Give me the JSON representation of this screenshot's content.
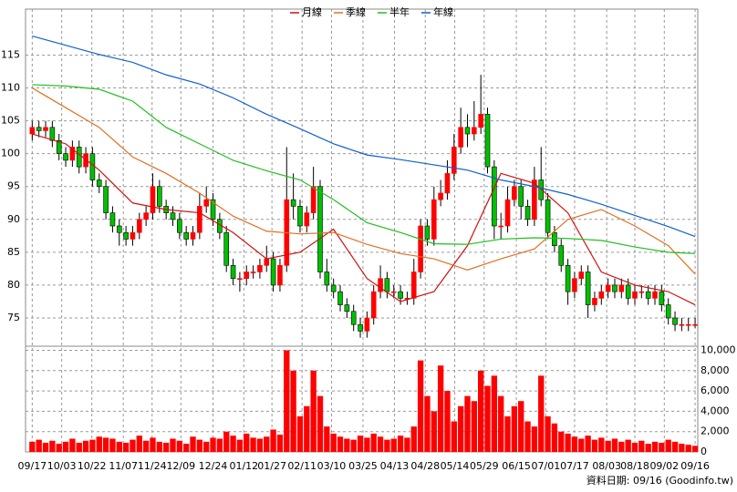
{
  "chart_data": {
    "type": "candlestick",
    "footer": "資料日期: 09/16  (Goodinfo.tw)",
    "xlim": [
      -1,
      99.4
    ],
    "xticks": [
      {
        "value": 0,
        "label": "09/17"
      },
      {
        "value": 4.4,
        "label": "10/03"
      },
      {
        "value": 8.9,
        "label": "10/22"
      },
      {
        "value": 13.6,
        "label": "11/07"
      },
      {
        "value": 17.9,
        "label": "11/24"
      },
      {
        "value": 22.2,
        "label": "12/09"
      },
      {
        "value": 27,
        "label": "12/24"
      },
      {
        "value": 31.6,
        "label": "01/12"
      },
      {
        "value": 35.8,
        "label": "01/27"
      },
      {
        "value": 40.3,
        "label": "02/11"
      },
      {
        "value": 44.7,
        "label": "03/10"
      },
      {
        "value": 49.4,
        "label": "03/25"
      },
      {
        "value": 54.1,
        "label": "04/13"
      },
      {
        "value": 58.7,
        "label": "04/28"
      },
      {
        "value": 63.1,
        "label": "05/14"
      },
      {
        "value": 67.5,
        "label": "05/29"
      },
      {
        "value": 72.3,
        "label": "06/15"
      },
      {
        "value": 76.7,
        "label": "07/01"
      },
      {
        "value": 81,
        "label": "07/17"
      },
      {
        "value": 85.8,
        "label": "08/03"
      },
      {
        "value": 90,
        "label": "08/18"
      },
      {
        "value": 94.4,
        "label": "09/02"
      },
      {
        "value": 99,
        "label": "09/16"
      }
    ],
    "ylim": [
      70.7,
      122
    ],
    "yticks": [
      75,
      80,
      85,
      90,
      95,
      100,
      105,
      110,
      115
    ],
    "y2lim": [
      0,
      10400
    ],
    "y2ticks": [
      0,
      {
        "value": 2000,
        "label": "2,000"
      },
      {
        "value": 4000,
        "label": "4,000"
      },
      {
        "value": 6000,
        "label": "6,000"
      },
      {
        "value": 8000,
        "label": "8,000"
      },
      {
        "value": 10000,
        "label": "10,000"
      }
    ],
    "grid": true,
    "up_color": "#ff0000",
    "down_color": "#00c000",
    "volume_color": "#ff0000",
    "open": [
      103,
      104,
      103.5,
      104,
      102,
      100,
      99,
      101,
      98,
      100,
      96,
      95,
      91,
      89,
      88,
      87,
      88,
      90,
      91,
      95,
      92,
      91,
      90,
      88,
      87,
      88,
      92,
      93,
      90,
      88,
      83,
      81,
      81,
      82,
      82,
      83,
      84,
      80,
      83,
      93,
      92,
      89,
      91,
      95,
      82,
      80,
      79,
      77,
      76,
      74,
      73,
      75,
      79,
      81,
      79,
      79,
      78,
      78,
      82,
      89,
      87,
      93,
      94,
      97,
      101,
      104,
      103,
      104,
      106,
      98,
      89,
      89,
      93,
      95,
      92,
      90,
      96,
      93,
      88,
      86,
      83,
      79,
      81,
      82,
      77,
      78,
      79,
      80,
      79,
      80,
      78,
      79,
      79,
      78,
      79,
      77,
      75,
      74,
      74,
      74
    ],
    "high": [
      105,
      105,
      105,
      105,
      103,
      101,
      102,
      102,
      101,
      101,
      97,
      96,
      92,
      90,
      89,
      89,
      91,
      92,
      97,
      96,
      93,
      92,
      91,
      89,
      89,
      94,
      95,
      94,
      91,
      89,
      84,
      82,
      83,
      83,
      84,
      86,
      85,
      84,
      101,
      97,
      93,
      92,
      98,
      96,
      84,
      81,
      80,
      78,
      77,
      75,
      76,
      80,
      83,
      82,
      80,
      80,
      79,
      84,
      90,
      90,
      95,
      96,
      99,
      103,
      107,
      106,
      108,
      112,
      107,
      99,
      91,
      95,
      96,
      96,
      93,
      98,
      101,
      94,
      89,
      87,
      84,
      82,
      83,
      83,
      79,
      80,
      81,
      81,
      81,
      81,
      80,
      80,
      80,
      80,
      80,
      78,
      76,
      75,
      75,
      75
    ],
    "low": [
      102,
      102.5,
      102.5,
      101,
      99,
      98,
      98,
      97,
      97,
      95,
      94,
      90,
      88,
      86,
      86,
      86,
      87,
      89,
      90,
      91,
      90,
      89,
      87,
      86,
      86,
      87,
      91,
      89,
      87,
      82,
      80,
      79,
      80,
      81,
      81,
      82,
      79,
      79,
      82,
      90,
      88,
      88,
      90,
      81,
      79,
      78,
      76,
      75,
      73,
      72,
      72,
      74,
      78,
      78,
      78,
      77,
      77,
      77,
      81,
      86,
      86,
      92,
      93,
      96,
      100,
      101,
      102,
      103,
      97,
      87,
      87,
      88,
      92,
      90,
      89,
      89,
      92,
      87,
      85,
      82,
      77,
      78,
      80,
      75,
      76,
      77,
      78,
      78,
      78,
      77,
      77,
      78,
      77,
      77,
      76,
      74,
      73,
      73,
      73,
      73.5
    ],
    "close": [
      104,
      103.5,
      104,
      102,
      100,
      99,
      101,
      98,
      100,
      96,
      95,
      91,
      89,
      88,
      87,
      88,
      90,
      91,
      95,
      92,
      91,
      90,
      88,
      87,
      88,
      92,
      93,
      90,
      88,
      83,
      81,
      81,
      82,
      82,
      83,
      84,
      80,
      83,
      93,
      92,
      89,
      91,
      95,
      82,
      80,
      79,
      77,
      76,
      74,
      73,
      75,
      79,
      81,
      79,
      79,
      78,
      78,
      82,
      89,
      87,
      93,
      94,
      97,
      101,
      104,
      103,
      104,
      106,
      98,
      89,
      89,
      93,
      95,
      92,
      90,
      96,
      93,
      88,
      86,
      83,
      79,
      81,
      82,
      77,
      78,
      79,
      80,
      79,
      80,
      78,
      79,
      79,
      78,
      79,
      77,
      75,
      74,
      74,
      74,
      74
    ],
    "volume": [
      1000,
      1200,
      900,
      1100,
      800,
      1000,
      1300,
      900,
      1100,
      1200,
      1500,
      1400,
      1300,
      1000,
      900,
      1200,
      1600,
      1100,
      1400,
      1000,
      900,
      1300,
      1100,
      800,
      1500,
      1200,
      1000,
      1400,
      1300,
      2000,
      1600,
      1200,
      1800,
      1400,
      1300,
      1500,
      2200,
      1700,
      10000,
      8000,
      3500,
      4500,
      8000,
      5500,
      2500,
      1800,
      1500,
      1300,
      1200,
      1600,
      1400,
      1800,
      1500,
      1200,
      1300,
      1600,
      1400,
      2500,
      9000,
      5500,
      4000,
      8500,
      6000,
      3000,
      4500,
      5500,
      5000,
      8000,
      6500,
      7500,
      5500,
      3500,
      4500,
      5000,
      3000,
      2500,
      7500,
      3500,
      2800,
      2000,
      1800,
      1500,
      1300,
      1600,
      1200,
      1400,
      1100,
      1300,
      1000,
      1200,
      900,
      1100,
      800,
      1000,
      900,
      1200,
      1000,
      800,
      700,
      600
    ],
    "ma_x": [
      0,
      5,
      10,
      15,
      20,
      25,
      30,
      35,
      40,
      45,
      50,
      55,
      60,
      65,
      70,
      75,
      80,
      85,
      90,
      95,
      99
    ],
    "series": [
      {
        "name": "月線",
        "color": "#d01010",
        "values": [
          103,
          101.5,
          97.5,
          92.5,
          91.5,
          91,
          88,
          84,
          85,
          88.5,
          81,
          77.5,
          79,
          86,
          97,
          95.5,
          91,
          82,
          80,
          79,
          77
        ]
      },
      {
        "name": "季線",
        "color": "#e07020",
        "values": [
          110,
          107,
          104,
          99.5,
          97,
          94,
          90.5,
          88.2,
          87.8,
          88,
          86.2,
          84.8,
          84,
          82.3,
          84,
          85.5,
          90,
          91.5,
          89,
          86,
          81.7
        ]
      },
      {
        "name": "半年",
        "color": "#20c020",
        "values": [
          110.5,
          110.3,
          109.8,
          108,
          104,
          101.5,
          99,
          97.4,
          96,
          93,
          89.5,
          88,
          86.3,
          86.2,
          87,
          87.2,
          87.1,
          86.8,
          85.8,
          85,
          84.8
        ]
      },
      {
        "name": "年線",
        "color": "#1060d0",
        "values": [
          117.9,
          116.5,
          115.1,
          113.9,
          112,
          110.6,
          108.5,
          106,
          103.8,
          101.5,
          99.8,
          99.1,
          98.3,
          97.5,
          96,
          95,
          93.8,
          92.3,
          90.6,
          88.9,
          87.4
        ]
      }
    ]
  }
}
